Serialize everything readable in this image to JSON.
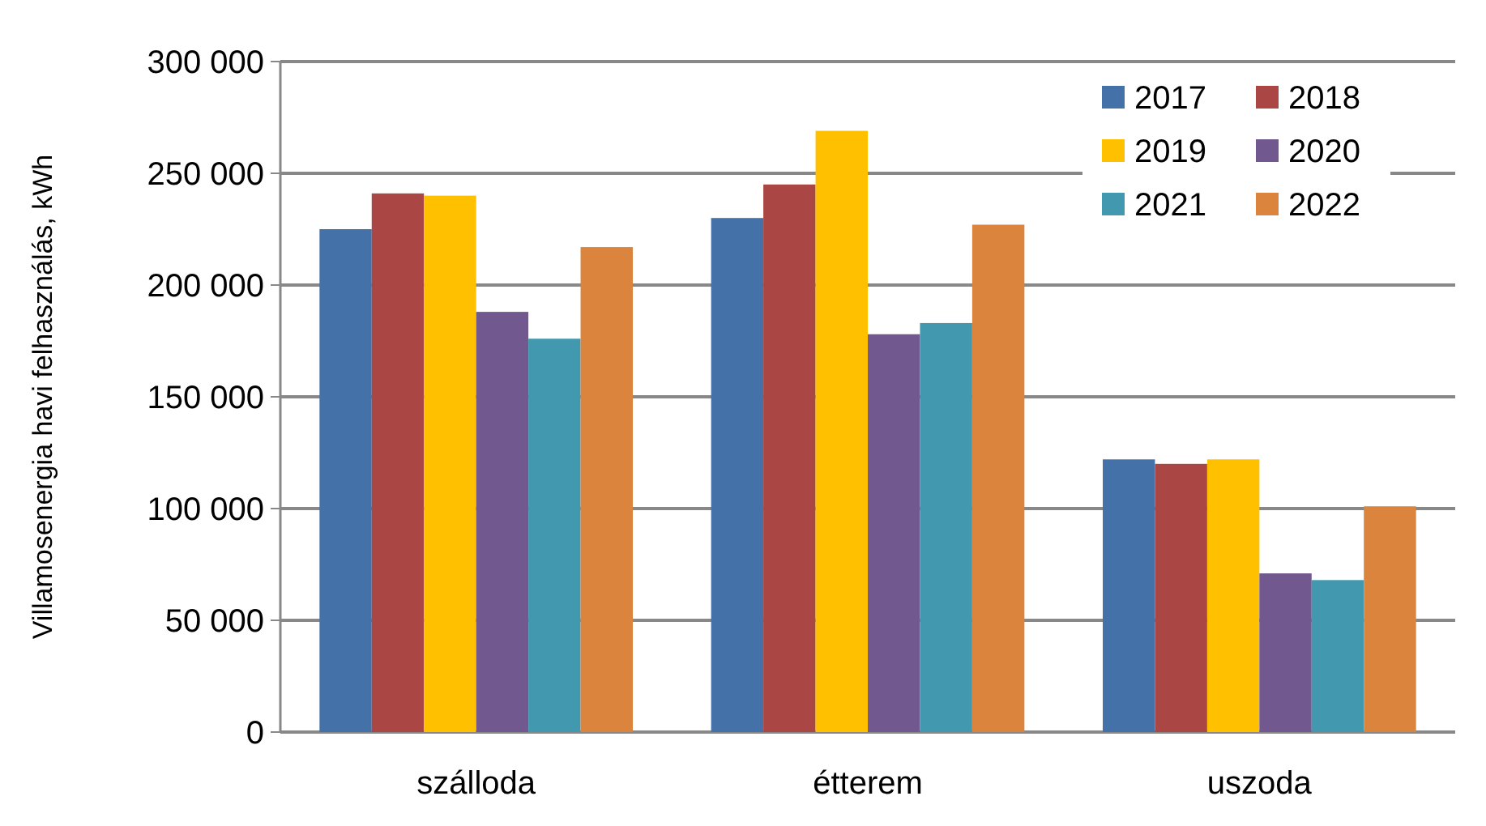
{
  "chart_data": {
    "type": "bar",
    "ylabel": "Villamosenergia havi felhasználás, kWh",
    "categories": [
      "szálloda",
      "étterem",
      "uszoda"
    ],
    "series": [
      {
        "name": "2017",
        "color": "#4472a8",
        "values": [
          225000,
          230000,
          122000
        ]
      },
      {
        "name": "2018",
        "color": "#aa4643",
        "values": [
          241000,
          245000,
          120000
        ]
      },
      {
        "name": "2019",
        "color": "#ffc000",
        "values": [
          240000,
          269000,
          122000
        ]
      },
      {
        "name": "2020",
        "color": "#71588f",
        "values": [
          188000,
          178000,
          71000
        ]
      },
      {
        "name": "2021",
        "color": "#4198af",
        "values": [
          176000,
          183000,
          68000
        ]
      },
      {
        "name": "2022",
        "color": "#db843d",
        "values": [
          217000,
          227000,
          101000
        ]
      }
    ],
    "ylim": [
      0,
      300000
    ],
    "yticks": [
      {
        "value": 0,
        "label": "0"
      },
      {
        "value": 50000,
        "label": "50 000"
      },
      {
        "value": 100000,
        "label": "100 000"
      },
      {
        "value": 150000,
        "label": "150 000"
      },
      {
        "value": 200000,
        "label": "200 000"
      },
      {
        "value": 250000,
        "label": "250 000"
      },
      {
        "value": 300000,
        "label": "300 000"
      }
    ],
    "grid": "y",
    "legend": "top right"
  }
}
